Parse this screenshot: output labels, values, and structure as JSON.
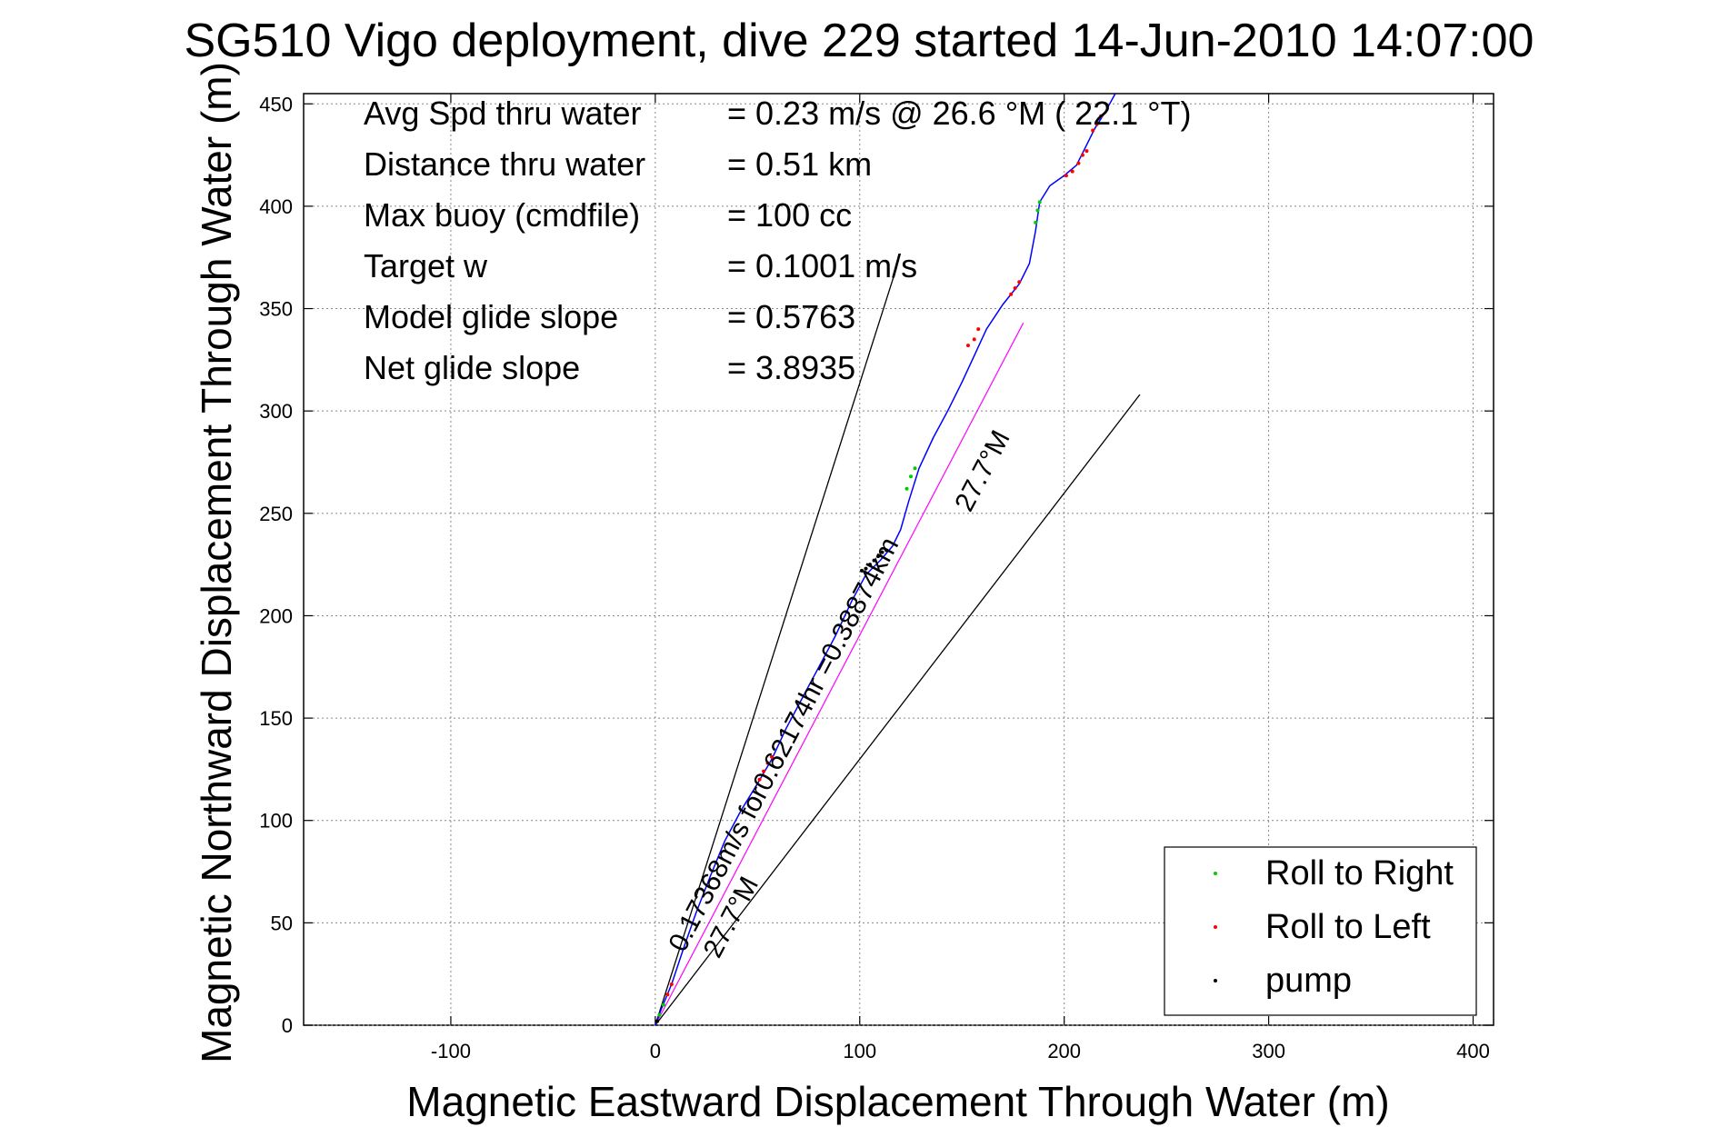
{
  "chart_data": {
    "type": "scatter",
    "title": "SG510 Vigo deployment, dive 229 started 14-Jun-2010 14:07:00",
    "xlabel": "Magnetic Eastward Displacement Through Water (m)",
    "ylabel": "Magnetic Northward Displacement Through Water (m)",
    "xlim": [
      -172,
      410
    ],
    "ylim": [
      0,
      455
    ],
    "xticks": [
      -100,
      0,
      100,
      200,
      300,
      400
    ],
    "yticks": [
      0,
      50,
      100,
      150,
      200,
      250,
      300,
      350,
      400,
      450
    ],
    "grid": true,
    "legend_position": "bottom-right",
    "colors": {
      "track": "#0000ff",
      "net": "#ff00ff",
      "roll_right": "#00cc00",
      "roll_left": "#ff0000",
      "pump": "#000000",
      "guide": "#000000"
    },
    "info": [
      {
        "label": "Avg Spd thru water",
        "value": "=  0.23 m/s @  26.6 °M ( 22.1 °T)"
      },
      {
        "label": "Distance thru water",
        "value": "=  0.51 km"
      },
      {
        "label": "Max buoy (cmdfile)",
        "value": "= 100 cc"
      },
      {
        "label": "Target w",
        "value": "= 0.1001 m/s"
      },
      {
        "label": "Model glide slope",
        "value": "= 0.5763"
      },
      {
        "label": "Net glide slope",
        "value": "= 3.8935"
      }
    ],
    "legend": [
      {
        "key": "roll_right",
        "label": "Roll to Right"
      },
      {
        "key": "roll_left",
        "label": "Roll to Left"
      },
      {
        "key": "pump",
        "label": "pump"
      }
    ],
    "track": [
      [
        0,
        0
      ],
      [
        3,
        8
      ],
      [
        8,
        20
      ],
      [
        14,
        38
      ],
      [
        20,
        55
      ],
      [
        27,
        73
      ],
      [
        34,
        90
      ],
      [
        42,
        105
      ],
      [
        50,
        118
      ],
      [
        57,
        130
      ],
      [
        64,
        145
      ],
      [
        72,
        160
      ],
      [
        80,
        175
      ],
      [
        88,
        190
      ],
      [
        96,
        207
      ],
      [
        103,
        220
      ],
      [
        110,
        227
      ],
      [
        116,
        234
      ],
      [
        120,
        242
      ],
      [
        124,
        256
      ],
      [
        129,
        272
      ],
      [
        136,
        287
      ],
      [
        143,
        300
      ],
      [
        150,
        314
      ],
      [
        156,
        327
      ],
      [
        162,
        340
      ],
      [
        170,
        352
      ],
      [
        178,
        362
      ],
      [
        183,
        372
      ],
      [
        186,
        388
      ],
      [
        188,
        402
      ],
      [
        193,
        410
      ],
      [
        200,
        415
      ],
      [
        206,
        420
      ],
      [
        210,
        428
      ],
      [
        215,
        438
      ],
      [
        220,
        446
      ],
      [
        225,
        455
      ]
    ],
    "net_line": [
      [
        0,
        0
      ],
      [
        180,
        343
      ]
    ],
    "guide_lines": [
      [
        [
          0,
          0
        ],
        [
          118,
          370
        ]
      ],
      [
        [
          0,
          0
        ],
        [
          237,
          308
        ]
      ]
    ],
    "roll_right_points": [
      [
        2,
        5
      ],
      [
        4,
        10
      ],
      [
        123,
        262
      ],
      [
        125,
        268
      ],
      [
        127,
        272
      ],
      [
        186,
        392
      ],
      [
        187,
        398
      ],
      [
        188,
        402
      ]
    ],
    "roll_left_points": [
      [
        6,
        15
      ],
      [
        8,
        20
      ],
      [
        51,
        120
      ],
      [
        53,
        124
      ],
      [
        55,
        128
      ],
      [
        57,
        131
      ],
      [
        153,
        332
      ],
      [
        156,
        335
      ],
      [
        158,
        340
      ],
      [
        174,
        357
      ],
      [
        176,
        360
      ],
      [
        178,
        363
      ],
      [
        201,
        415
      ],
      [
        204,
        417
      ],
      [
        207,
        421
      ],
      [
        209,
        425
      ],
      [
        211,
        427
      ],
      [
        214,
        437
      ],
      [
        216,
        440
      ],
      [
        218,
        444
      ]
    ],
    "pump_points": [
      [
        1,
        2
      ],
      [
        101,
        222
      ],
      [
        103,
        223
      ],
      [
        105,
        225
      ],
      [
        107,
        227
      ],
      [
        109,
        229
      ],
      [
        111,
        231
      ],
      [
        113,
        232
      ]
    ],
    "annotations": [
      {
        "text": "0.17368m/s for0.62174hr =0.38874km",
        "x": 14,
        "y": 35,
        "angle_deg": 62.3
      },
      {
        "text": "27.7°M",
        "x": 31,
        "y": 32,
        "angle_deg": 62.3
      },
      {
        "text": "27.7°M",
        "x": 154,
        "y": 250,
        "angle_deg": 62.3
      }
    ]
  }
}
